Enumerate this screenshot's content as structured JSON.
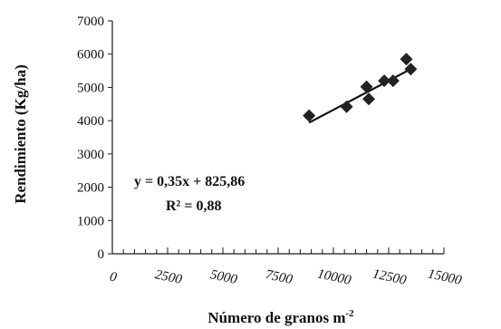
{
  "chart_data": {
    "type": "scatter",
    "title": "",
    "xlabel": "Número de granos m",
    "xlabel_sup": "-2",
    "ylabel": "Rendimiento (Kg/ha)",
    "xlim": [
      0,
      15000
    ],
    "ylim": [
      0,
      7000
    ],
    "x_ticks": [
      "0",
      "2500",
      "5000",
      "7500",
      "10000",
      "12500",
      "15000"
    ],
    "y_ticks": [
      "0",
      "1000",
      "2000",
      "3000",
      "4000",
      "5000",
      "6000",
      "7000"
    ],
    "grid": false,
    "legend": "none",
    "points": [
      {
        "x": 8900,
        "y": 4150
      },
      {
        "x": 10600,
        "y": 4420
      },
      {
        "x": 11500,
        "y": 5020
      },
      {
        "x": 11600,
        "y": 4650
      },
      {
        "x": 12300,
        "y": 5200
      },
      {
        "x": 12700,
        "y": 5200
      },
      {
        "x": 13300,
        "y": 5850
      },
      {
        "x": 13500,
        "y": 5550
      }
    ],
    "trendline": {
      "slope": 0.35,
      "intercept": 825.86,
      "x_range": [
        8900,
        13500
      ]
    },
    "annotations": [
      "y = 0,35x + 825,86",
      "R² = 0,88"
    ],
    "colors": {
      "points": "#222222",
      "line": "#111111"
    }
  }
}
